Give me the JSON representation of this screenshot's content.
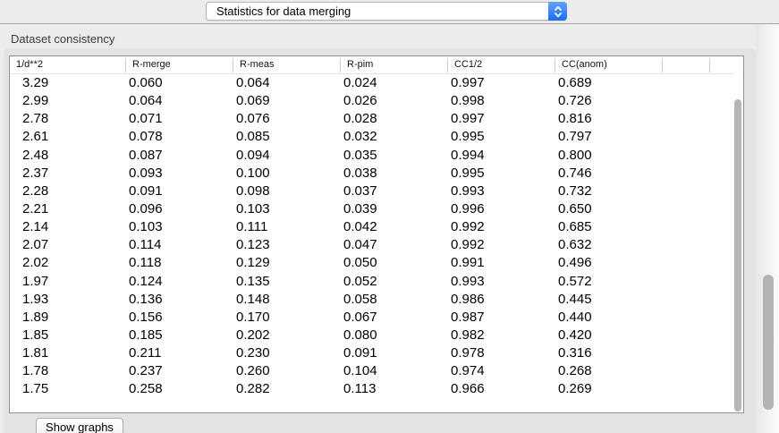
{
  "toolbar": {
    "view_selector": {
      "selected": "Statistics for data merging",
      "stepper_icon": "chevron-up-down"
    }
  },
  "section": {
    "title": "Dataset consistency"
  },
  "table": {
    "columns": [
      "1/d**2",
      "R-merge",
      "R-meas",
      "R-pim",
      "CC1/2",
      "CC(anom)",
      "",
      ""
    ],
    "rows": [
      [
        "3.29",
        "0.060",
        "0.064",
        "0.024",
        "0.997",
        "0.689"
      ],
      [
        "2.99",
        "0.064",
        "0.069",
        "0.026",
        "0.998",
        "0.726"
      ],
      [
        "2.78",
        "0.071",
        "0.076",
        "0.028",
        "0.997",
        "0.816"
      ],
      [
        "2.61",
        "0.078",
        "0.085",
        "0.032",
        "0.995",
        "0.797"
      ],
      [
        "2.48",
        "0.087",
        "0.094",
        "0.035",
        "0.994",
        "0.800"
      ],
      [
        "2.37",
        "0.093",
        "0.100",
        "0.038",
        "0.995",
        "0.746"
      ],
      [
        "2.28",
        "0.091",
        "0.098",
        "0.037",
        "0.993",
        "0.732"
      ],
      [
        "2.21",
        "0.096",
        "0.103",
        "0.039",
        "0.996",
        "0.650"
      ],
      [
        "2.14",
        "0.103",
        "0.111",
        "0.042",
        "0.992",
        "0.685"
      ],
      [
        "2.07",
        "0.114",
        "0.123",
        "0.047",
        "0.992",
        "0.632"
      ],
      [
        "2.02",
        "0.118",
        "0.129",
        "0.050",
        "0.991",
        "0.496"
      ],
      [
        "1.97",
        "0.124",
        "0.135",
        "0.052",
        "0.993",
        "0.572"
      ],
      [
        "1.93",
        "0.136",
        "0.148",
        "0.058",
        "0.986",
        "0.445"
      ],
      [
        "1.89",
        "0.156",
        "0.170",
        "0.067",
        "0.987",
        "0.440"
      ],
      [
        "1.85",
        "0.185",
        "0.202",
        "0.080",
        "0.982",
        "0.420"
      ],
      [
        "1.81",
        "0.211",
        "0.230",
        "0.091",
        "0.978",
        "0.316"
      ],
      [
        "1.78",
        "0.237",
        "0.260",
        "0.104",
        "0.974",
        "0.268"
      ],
      [
        "1.75",
        "0.258",
        "0.282",
        "0.113",
        "0.966",
        "0.269"
      ]
    ]
  },
  "footer": {
    "show_graphs_button": "Show graphs"
  },
  "colors": {
    "window_bg": "#ececec",
    "groupbox_bg": "#e3e3e3",
    "popup_accent": "#2b7bf6",
    "scrollbar_thumb": "#b5b5b5",
    "table_border": "#8f8f8f"
  }
}
